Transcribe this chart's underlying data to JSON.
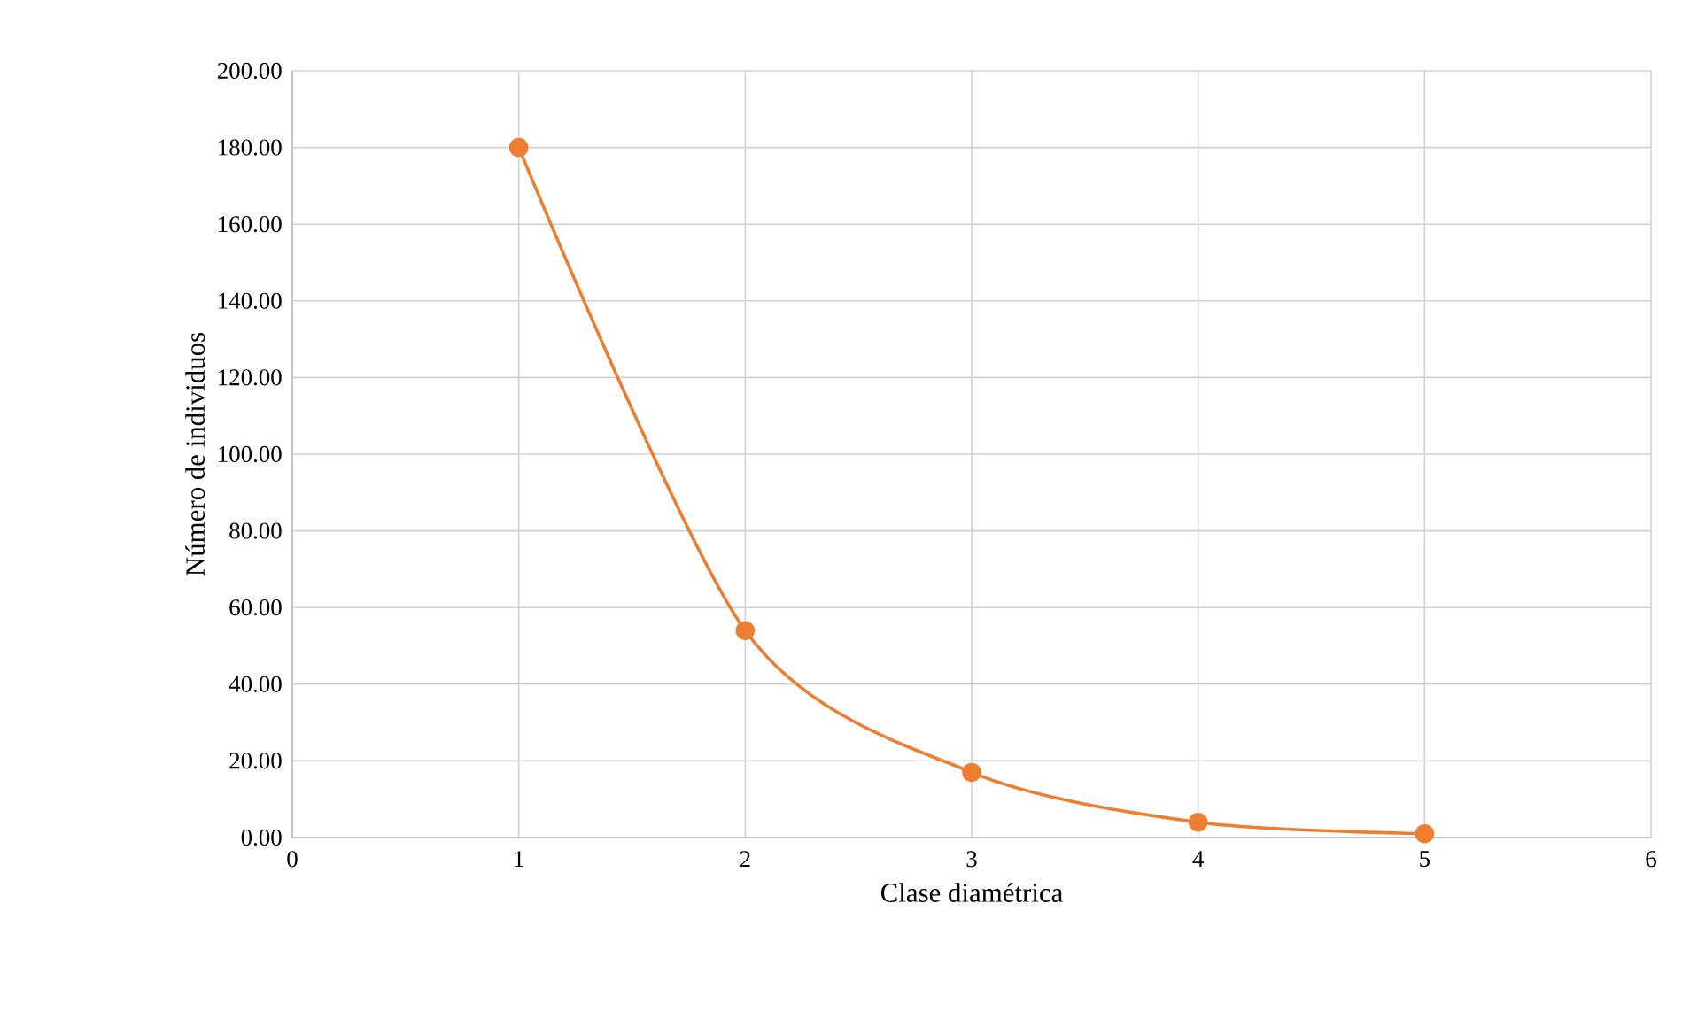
{
  "chart_data": {
    "type": "line",
    "xlabel": "Clase diamétrica",
    "ylabel": "Número de individuos",
    "x": [
      1,
      2,
      3,
      4,
      5
    ],
    "series": [
      {
        "color": "#ed7d31",
        "values": [
          180,
          54,
          17,
          4,
          1
        ]
      }
    ],
    "xlim": [
      0,
      6
    ],
    "xticks": [
      0,
      1,
      2,
      3,
      4,
      5,
      6
    ],
    "ylim": [
      0,
      200
    ],
    "yticks": [
      {
        "value": 0,
        "label": "0.00"
      },
      {
        "value": 20,
        "label": "20.00"
      },
      {
        "value": 40,
        "label": "40.00"
      },
      {
        "value": 60,
        "label": "60.00"
      },
      {
        "value": 80,
        "label": "80.00"
      },
      {
        "value": 100,
        "label": "100.00"
      },
      {
        "value": 120,
        "label": "120.00"
      },
      {
        "value": 140,
        "label": "140.00"
      },
      {
        "value": 160,
        "label": "160.00"
      },
      {
        "value": 180,
        "label": "180.00"
      },
      {
        "value": 200,
        "label": "200.00"
      }
    ],
    "grid": true,
    "marker": "circle",
    "line_style": "solid"
  }
}
